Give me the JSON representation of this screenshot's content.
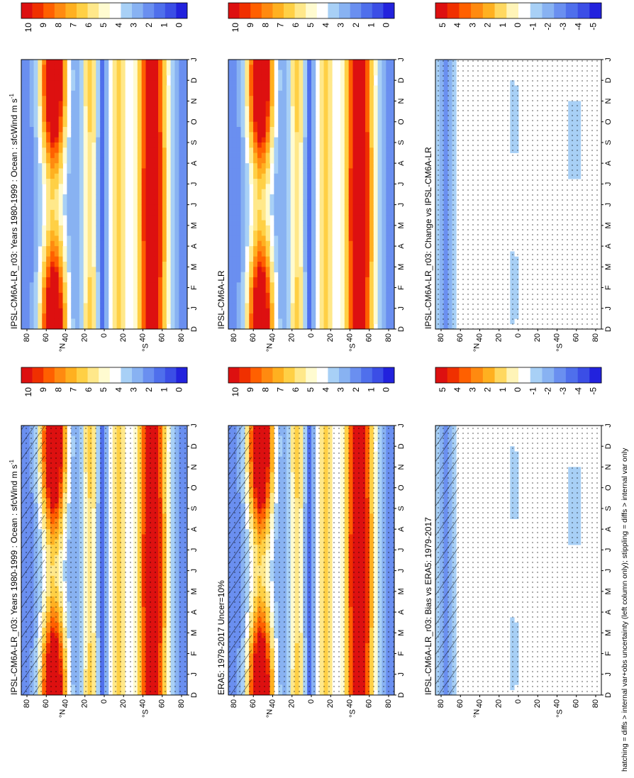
{
  "figure": {
    "footnote": "hatching = diffs > internal var+obs uncertainty (left column only); stippling = diffs > internal var only"
  },
  "chart_data": [
    {
      "type": "heatmap",
      "id": "model-left",
      "title": "IPSL-CM6A-LR_r03: Years 1980-1999 : Ocean : sfcWind m s",
      "title_sup": "-1",
      "months": [
        "D",
        "J",
        "F",
        "M",
        "A",
        "M",
        "J",
        "J",
        "A",
        "S",
        "O",
        "N",
        "D",
        "J"
      ],
      "lat_ticks": [
        "80",
        "60",
        "40",
        "20",
        "0",
        "20",
        "40",
        "60",
        "80"
      ],
      "lat_unit_labels": [
        "°N",
        "°S"
      ],
      "colorbar": {
        "labels": [
          "10",
          "9",
          "8",
          "7",
          "6",
          "5",
          "4",
          "3",
          "2",
          "1",
          "0"
        ],
        "kind": "abs"
      },
      "stippling": true,
      "hatching": true
    },
    {
      "type": "heatmap",
      "id": "model-right",
      "title": "IPSL-CM6A-LR_r03: Years 1980-1999 : Ocean : sfcWind m s",
      "title_sup": "-1",
      "months": [
        "D",
        "J",
        "F",
        "M",
        "A",
        "M",
        "J",
        "J",
        "A",
        "S",
        "O",
        "N",
        "D",
        "J"
      ],
      "lat_ticks": [
        "80",
        "60",
        "40",
        "20",
        "0",
        "20",
        "40",
        "60",
        "80"
      ],
      "lat_unit_labels": [
        "°N",
        "°S"
      ],
      "colorbar": {
        "labels": [
          "10",
          "9",
          "8",
          "7",
          "6",
          "5",
          "4",
          "3",
          "2",
          "1",
          "0"
        ],
        "kind": "abs"
      },
      "stippling": false,
      "hatching": false
    },
    {
      "type": "heatmap",
      "id": "obs-left",
      "title": "ERA5: 1979-2017 Uncer=10%",
      "title_sup": "",
      "months": [
        "D",
        "J",
        "F",
        "M",
        "A",
        "M",
        "J",
        "J",
        "A",
        "S",
        "O",
        "N",
        "D",
        "J"
      ],
      "lat_ticks": [
        "80",
        "60",
        "40",
        "20",
        "0",
        "20",
        "40",
        "60",
        "80"
      ],
      "lat_unit_labels": [
        "°N",
        "°S"
      ],
      "colorbar": {
        "labels": [
          "10",
          "9",
          "8",
          "7",
          "6",
          "5",
          "4",
          "3",
          "2",
          "1",
          "0"
        ],
        "kind": "abs"
      },
      "stippling": true,
      "hatching": true
    },
    {
      "type": "heatmap",
      "id": "obs-right",
      "title": "IPSL-CM6A-LR",
      "title_sup": "",
      "months": [
        "D",
        "J",
        "F",
        "M",
        "A",
        "M",
        "J",
        "J",
        "A",
        "S",
        "O",
        "N",
        "D",
        "J"
      ],
      "lat_ticks": [
        "80",
        "60",
        "40",
        "20",
        "0",
        "20",
        "40",
        "60",
        "80"
      ],
      "lat_unit_labels": [
        "°N",
        "°S"
      ],
      "colorbar": {
        "labels": [
          "10",
          "9",
          "8",
          "7",
          "6",
          "5",
          "4",
          "3",
          "2",
          "1",
          "0"
        ],
        "kind": "abs"
      },
      "stippling": false,
      "hatching": false
    },
    {
      "type": "heatmap",
      "id": "bias-left",
      "title": "IPSL-CM6A-LR_r03: Bias vs ERA5: 1979-2017",
      "title_sup": "",
      "months": [
        "D",
        "J",
        "F",
        "M",
        "A",
        "M",
        "J",
        "J",
        "A",
        "S",
        "O",
        "N",
        "D",
        "J"
      ],
      "lat_ticks": [
        "80",
        "60",
        "40",
        "20",
        "0",
        "20",
        "40",
        "60",
        "80"
      ],
      "lat_unit_labels": [
        "°N",
        "°S"
      ],
      "colorbar": {
        "labels": [
          "5",
          "4",
          "3",
          "2",
          "1",
          "0",
          "-1",
          "-2",
          "-3",
          "-4",
          "-5"
        ],
        "kind": "diff"
      },
      "stippling": true,
      "hatching": true
    },
    {
      "type": "heatmap",
      "id": "change-right",
      "title": "IPSL-CM6A-LR_r03: Change vs IPSL-CM6A-LR",
      "title_sup": "",
      "months": [
        "D",
        "J",
        "F",
        "M",
        "A",
        "M",
        "J",
        "J",
        "A",
        "S",
        "O",
        "N",
        "D",
        "J"
      ],
      "lat_ticks": [
        "80",
        "60",
        "40",
        "20",
        "0",
        "20",
        "40",
        "60",
        "80"
      ],
      "lat_unit_labels": [
        "°N",
        "°S"
      ],
      "colorbar": {
        "labels": [
          "5",
          "4",
          "3",
          "2",
          "1",
          "0",
          "-1",
          "-2",
          "-3",
          "-4",
          "-5"
        ],
        "kind": "diff"
      },
      "stippling": true,
      "hatching": false
    }
  ],
  "colors": {
    "abs_scale": [
      "#2222dd",
      "#3b4ee6",
      "#4f6fec",
      "#6a8ff0",
      "#88b2f2",
      "#a8d0f6",
      "#ffffff",
      "#fffbd0",
      "#ffe88a",
      "#ffd045",
      "#ffb020",
      "#ff8a10",
      "#ff6000",
      "#f03000",
      "#dd1010"
    ],
    "diff_scale": [
      "#2222dd",
      "#3b4ee6",
      "#4f6fec",
      "#6a8ff0",
      "#88b2f2",
      "#a8d0f6",
      "#ffffff",
      "#fff4b8",
      "#ffd860",
      "#ffb020",
      "#ff8a10",
      "#ff6000",
      "#f03000",
      "#dd1010"
    ]
  }
}
